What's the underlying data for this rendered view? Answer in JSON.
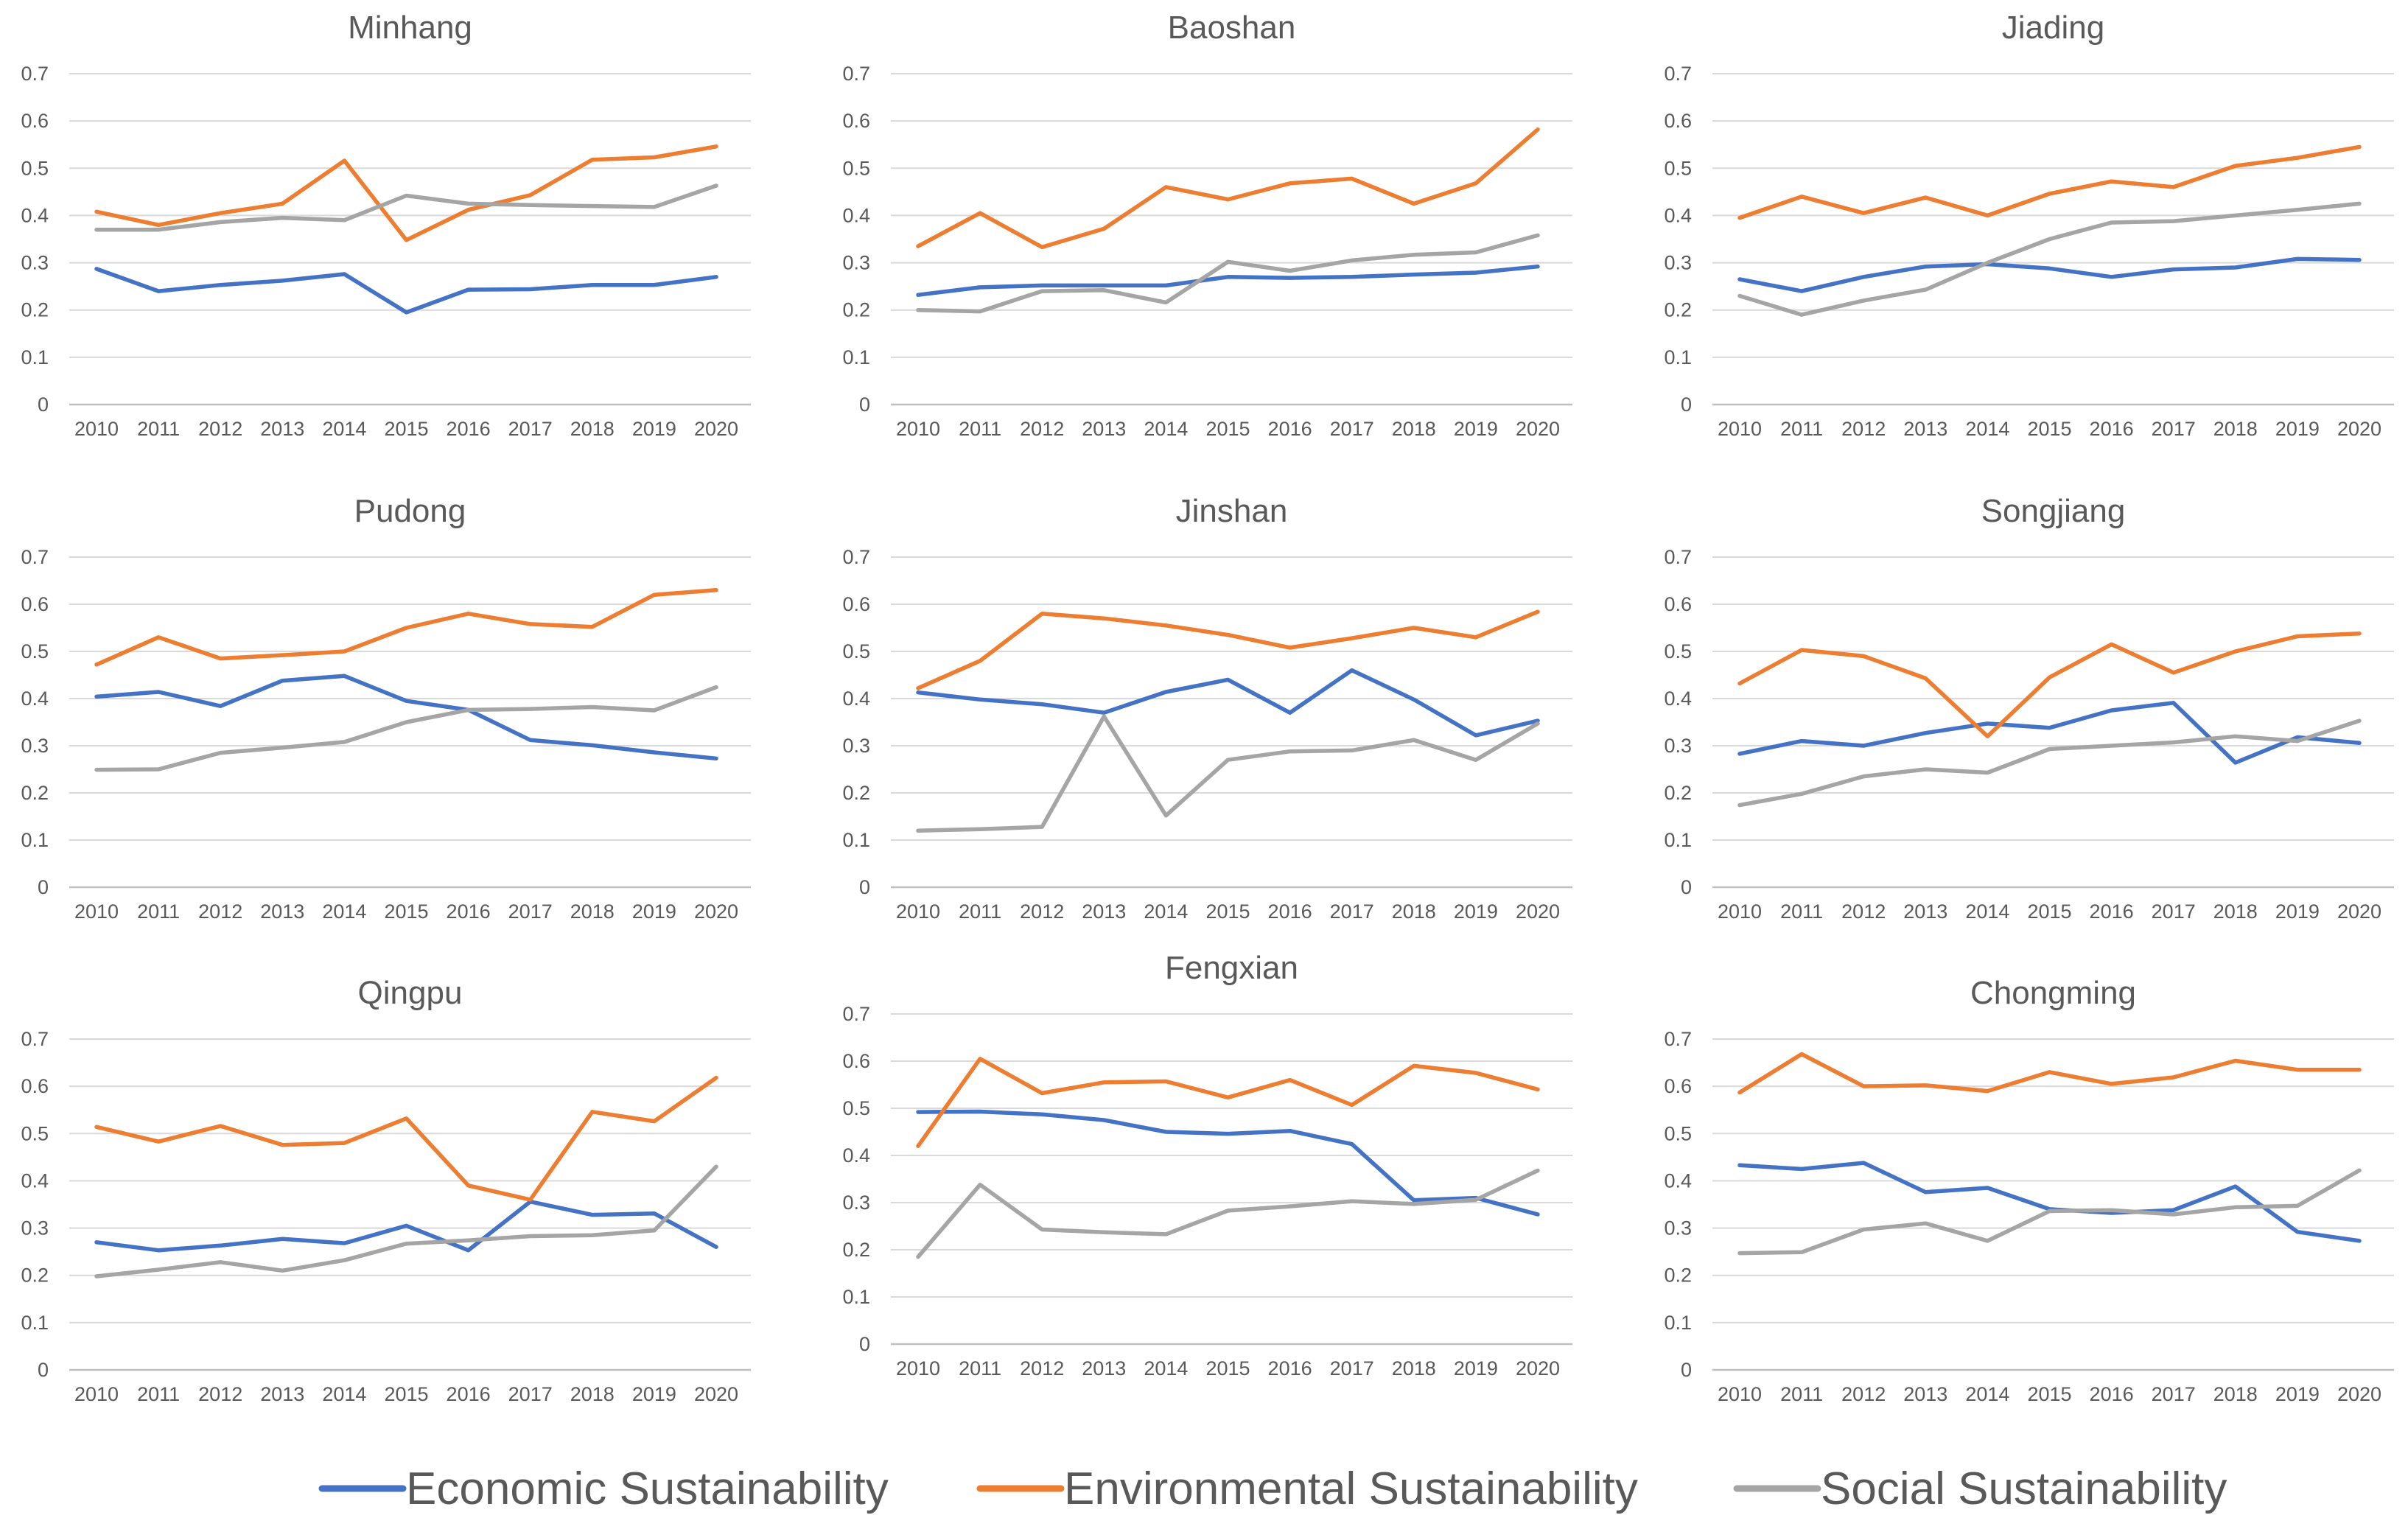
{
  "colors": {
    "economic": "#4472C4",
    "environmental": "#ED7D31",
    "social": "#A5A5A5"
  },
  "legend": [
    {
      "key": "economic",
      "label": "Economic Sustainability"
    },
    {
      "key": "environmental",
      "label": "Environmental Sustainability"
    },
    {
      "key": "social",
      "label": "Social Sustainability"
    }
  ],
  "chart_data": [
    {
      "type": "line",
      "title": "Minhang",
      "categories": [
        "2010",
        "2011",
        "2012",
        "2013",
        "2014",
        "2015",
        "2016",
        "2017",
        "2018",
        "2019",
        "2020"
      ],
      "y_ticks": [
        "0",
        "0.1",
        "0.2",
        "0.3",
        "0.4",
        "0.5",
        "0.6",
        "0.7"
      ],
      "ylim": [
        0,
        0.7
      ],
      "grid": true,
      "series": [
        {
          "name": "Economic Sustainability",
          "key": "economic",
          "values": [
            0.287,
            0.24,
            0.253,
            0.262,
            0.276,
            0.195,
            0.243,
            0.244,
            0.253,
            0.253,
            0.27
          ]
        },
        {
          "name": "Environmental Sustainability",
          "key": "environmental",
          "values": [
            0.408,
            0.38,
            0.405,
            0.425,
            0.516,
            0.348,
            0.412,
            0.443,
            0.518,
            0.523,
            0.546
          ]
        },
        {
          "name": "Social Sustainability",
          "key": "social",
          "values": [
            0.37,
            0.37,
            0.386,
            0.395,
            0.39,
            0.442,
            0.425,
            0.422,
            0.42,
            0.418,
            0.463
          ]
        }
      ]
    },
    {
      "type": "line",
      "title": "Baoshan",
      "categories": [
        "2010",
        "2011",
        "2012",
        "2013",
        "2014",
        "2015",
        "2016",
        "2017",
        "2018",
        "2019",
        "2020"
      ],
      "y_ticks": [
        "0",
        "0.1",
        "0.2",
        "0.3",
        "0.4",
        "0.5",
        "0.6",
        "0.7"
      ],
      "ylim": [
        0,
        0.7
      ],
      "grid": true,
      "series": [
        {
          "name": "Economic Sustainability",
          "key": "economic",
          "values": [
            0.232,
            0.248,
            0.252,
            0.252,
            0.252,
            0.27,
            0.268,
            0.27,
            0.275,
            0.279,
            0.292
          ]
        },
        {
          "name": "Environmental Sustainability",
          "key": "environmental",
          "values": [
            0.335,
            0.405,
            0.333,
            0.372,
            0.46,
            0.434,
            0.468,
            0.478,
            0.425,
            0.468,
            0.582
          ]
        },
        {
          "name": "Social Sustainability",
          "key": "social",
          "values": [
            0.2,
            0.197,
            0.24,
            0.242,
            0.216,
            0.302,
            0.283,
            0.305,
            0.317,
            0.322,
            0.358
          ]
        }
      ]
    },
    {
      "type": "line",
      "title": "Jiading",
      "categories": [
        "2010",
        "2011",
        "2012",
        "2013",
        "2014",
        "2015",
        "2016",
        "2017",
        "2018",
        "2019",
        "2020"
      ],
      "y_ticks": [
        "0",
        "0.1",
        "0.2",
        "0.3",
        "0.4",
        "0.5",
        "0.6",
        "0.7"
      ],
      "ylim": [
        0,
        0.7
      ],
      "grid": true,
      "series": [
        {
          "name": "Economic Sustainability",
          "key": "economic",
          "values": [
            0.265,
            0.24,
            0.27,
            0.292,
            0.297,
            0.288,
            0.27,
            0.286,
            0.29,
            0.308,
            0.306
          ]
        },
        {
          "name": "Environmental Sustainability",
          "key": "environmental",
          "values": [
            0.395,
            0.44,
            0.405,
            0.438,
            0.4,
            0.446,
            0.472,
            0.46,
            0.505,
            0.522,
            0.545
          ]
        },
        {
          "name": "Social Sustainability",
          "key": "social",
          "values": [
            0.23,
            0.19,
            0.22,
            0.243,
            0.3,
            0.35,
            0.385,
            0.388,
            0.4,
            0.412,
            0.425
          ]
        }
      ]
    },
    {
      "type": "line",
      "title": "Pudong",
      "categories": [
        "2010",
        "2011",
        "2012",
        "2013",
        "2014",
        "2015",
        "2016",
        "2017",
        "2018",
        "2019",
        "2020"
      ],
      "y_ticks": [
        "0",
        "0.1",
        "0.2",
        "0.3",
        "0.4",
        "0.5",
        "0.6",
        "0.7"
      ],
      "ylim": [
        0,
        0.7
      ],
      "grid": true,
      "series": [
        {
          "name": "Economic Sustainability",
          "key": "economic",
          "values": [
            0.404,
            0.414,
            0.384,
            0.438,
            0.448,
            0.395,
            0.376,
            0.312,
            0.301,
            0.286,
            0.273
          ]
        },
        {
          "name": "Environmental Sustainability",
          "key": "environmental",
          "values": [
            0.472,
            0.53,
            0.485,
            0.492,
            0.5,
            0.55,
            0.58,
            0.558,
            0.552,
            0.62,
            0.63
          ]
        },
        {
          "name": "Social Sustainability",
          "key": "social",
          "values": [
            0.249,
            0.25,
            0.285,
            0.296,
            0.308,
            0.35,
            0.376,
            0.378,
            0.382,
            0.375,
            0.424
          ]
        }
      ]
    },
    {
      "type": "line",
      "title": "Jinshan",
      "categories": [
        "2010",
        "2011",
        "2012",
        "2013",
        "2014",
        "2015",
        "2016",
        "2017",
        "2018",
        "2019",
        "2020"
      ],
      "y_ticks": [
        "0",
        "0.1",
        "0.2",
        "0.3",
        "0.4",
        "0.5",
        "0.6",
        "0.7"
      ],
      "ylim": [
        0,
        0.7
      ],
      "grid": true,
      "series": [
        {
          "name": "Economic Sustainability",
          "key": "economic",
          "values": [
            0.413,
            0.398,
            0.388,
            0.37,
            0.414,
            0.44,
            0.37,
            0.46,
            0.398,
            0.322,
            0.353
          ]
        },
        {
          "name": "Environmental Sustainability",
          "key": "environmental",
          "values": [
            0.422,
            0.48,
            0.58,
            0.57,
            0.555,
            0.535,
            0.508,
            0.528,
            0.55,
            0.53,
            0.584
          ]
        },
        {
          "name": "Social Sustainability",
          "key": "social",
          "values": [
            0.12,
            0.123,
            0.128,
            0.362,
            0.152,
            0.27,
            0.288,
            0.29,
            0.312,
            0.27,
            0.347
          ]
        }
      ]
    },
    {
      "type": "line",
      "title": "Songjiang",
      "categories": [
        "2010",
        "2011",
        "2012",
        "2013",
        "2014",
        "2015",
        "2016",
        "2017",
        "2018",
        "2019",
        "2020"
      ],
      "y_ticks": [
        "0",
        "0.1",
        "0.2",
        "0.3",
        "0.4",
        "0.5",
        "0.6",
        "0.7"
      ],
      "ylim": [
        0,
        0.7
      ],
      "grid": true,
      "series": [
        {
          "name": "Economic Sustainability",
          "key": "economic",
          "values": [
            0.283,
            0.31,
            0.3,
            0.327,
            0.347,
            0.338,
            0.375,
            0.391,
            0.264,
            0.318,
            0.306
          ]
        },
        {
          "name": "Environmental Sustainability",
          "key": "environmental",
          "values": [
            0.432,
            0.503,
            0.49,
            0.443,
            0.32,
            0.445,
            0.515,
            0.455,
            0.5,
            0.532,
            0.538
          ]
        },
        {
          "name": "Social Sustainability",
          "key": "social",
          "values": [
            0.174,
            0.198,
            0.235,
            0.25,
            0.243,
            0.293,
            0.3,
            0.307,
            0.32,
            0.31,
            0.353
          ]
        }
      ]
    },
    {
      "type": "line",
      "title": "Qingpu",
      "categories": [
        "2010",
        "2011",
        "2012",
        "2013",
        "2014",
        "2015",
        "2016",
        "2017",
        "2018",
        "2019",
        "2020"
      ],
      "y_ticks": [
        "0",
        "0.1",
        "0.2",
        "0.3",
        "0.4",
        "0.5",
        "0.6",
        "0.7"
      ],
      "ylim": [
        0,
        0.7
      ],
      "grid": true,
      "series": [
        {
          "name": "Economic Sustainability",
          "key": "economic",
          "values": [
            0.27,
            0.253,
            0.263,
            0.277,
            0.268,
            0.305,
            0.253,
            0.356,
            0.328,
            0.331,
            0.26
          ]
        },
        {
          "name": "Environmental Sustainability",
          "key": "environmental",
          "values": [
            0.514,
            0.483,
            0.516,
            0.476,
            0.48,
            0.532,
            0.39,
            0.36,
            0.546,
            0.526,
            0.618
          ]
        },
        {
          "name": "Social Sustainability",
          "key": "social",
          "values": [
            0.198,
            0.212,
            0.228,
            0.21,
            0.232,
            0.267,
            0.274,
            0.283,
            0.285,
            0.295,
            0.43
          ]
        }
      ]
    },
    {
      "type": "line",
      "title": "Fengxian",
      "categories": [
        "2010",
        "2011",
        "2012",
        "2013",
        "2014",
        "2015",
        "2016",
        "2017",
        "2018",
        "2019",
        "2020"
      ],
      "y_ticks": [
        "0",
        "0.1",
        "0.2",
        "0.3",
        "0.4",
        "0.5",
        "0.6",
        "0.7"
      ],
      "ylim": [
        0,
        0.7
      ],
      "grid": true,
      "series": [
        {
          "name": "Economic Sustainability",
          "key": "economic",
          "values": [
            0.492,
            0.493,
            0.487,
            0.475,
            0.45,
            0.446,
            0.452,
            0.424,
            0.305,
            0.31,
            0.275
          ]
        },
        {
          "name": "Environmental Sustainability",
          "key": "environmental",
          "values": [
            0.42,
            0.605,
            0.532,
            0.555,
            0.557,
            0.523,
            0.56,
            0.507,
            0.59,
            0.575,
            0.54
          ]
        },
        {
          "name": "Social Sustainability",
          "key": "social",
          "values": [
            0.185,
            0.338,
            0.243,
            0.237,
            0.233,
            0.283,
            0.292,
            0.303,
            0.297,
            0.306,
            0.368
          ]
        }
      ]
    },
    {
      "type": "line",
      "title": "Chongming",
      "categories": [
        "2010",
        "2011",
        "2012",
        "2013",
        "2014",
        "2015",
        "2016",
        "2017",
        "2018",
        "2019",
        "2020"
      ],
      "y_ticks": [
        "0",
        "0.1",
        "0.2",
        "0.3",
        "0.4",
        "0.5",
        "0.6",
        "0.7"
      ],
      "ylim": [
        0,
        0.7
      ],
      "grid": true,
      "series": [
        {
          "name": "Economic Sustainability",
          "key": "economic",
          "values": [
            0.433,
            0.425,
            0.438,
            0.376,
            0.385,
            0.34,
            0.332,
            0.338,
            0.388,
            0.292,
            0.273
          ]
        },
        {
          "name": "Environmental Sustainability",
          "key": "environmental",
          "values": [
            0.587,
            0.668,
            0.6,
            0.602,
            0.59,
            0.63,
            0.605,
            0.619,
            0.654,
            0.635,
            0.635
          ]
        },
        {
          "name": "Social Sustainability",
          "key": "social",
          "values": [
            0.247,
            0.249,
            0.297,
            0.31,
            0.273,
            0.336,
            0.338,
            0.329,
            0.344,
            0.347,
            0.422
          ]
        }
      ]
    }
  ]
}
